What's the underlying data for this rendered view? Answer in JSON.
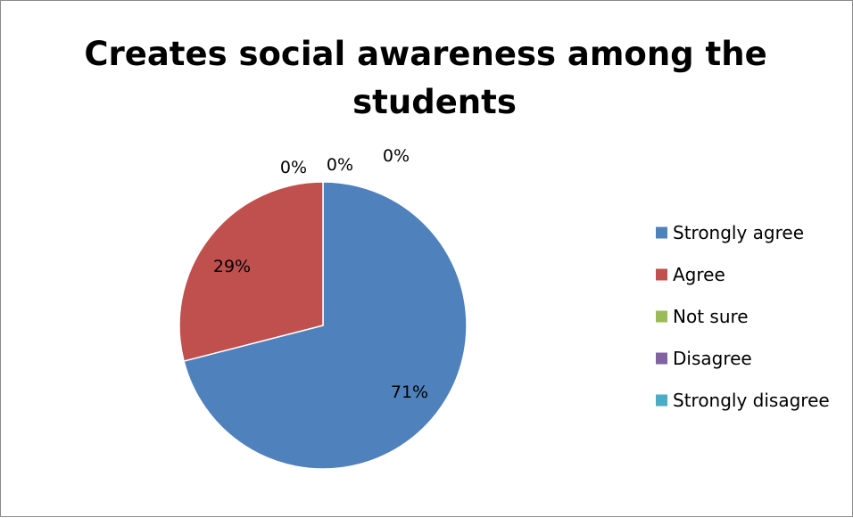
{
  "chart_data": {
    "type": "pie",
    "title": "Creates social awareness among the students",
    "title_lines": [
      "Creates social awareness among the",
      "students"
    ],
    "categories": [
      "Strongly agree",
      "Agree",
      "Not sure",
      "Disagree",
      "Strongly disagree"
    ],
    "values": [
      71,
      29,
      0,
      0,
      0
    ],
    "data_labels": [
      "71%",
      "29%",
      "0%",
      "0%",
      "0%"
    ],
    "colors": [
      "#4f81bd",
      "#c0504d",
      "#9bbb59",
      "#8064a2",
      "#4bacc6"
    ],
    "legend_position": "right"
  }
}
